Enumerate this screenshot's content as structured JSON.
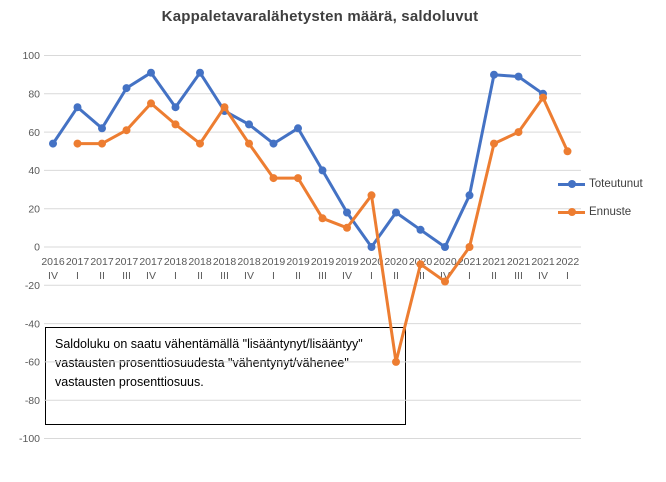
{
  "chart_data": {
    "type": "line",
    "title": "Kappaletavaralähetysten määrä, saldoluvut",
    "categories": [
      [
        "2016",
        "IV"
      ],
      [
        "2017",
        "I"
      ],
      [
        "2017",
        "II"
      ],
      [
        "2017",
        "III"
      ],
      [
        "2017",
        "IV"
      ],
      [
        "2018",
        "I"
      ],
      [
        "2018",
        "II"
      ],
      [
        "2018",
        "III"
      ],
      [
        "2018",
        "IV"
      ],
      [
        "2019",
        "I"
      ],
      [
        "2019",
        "II"
      ],
      [
        "2019",
        "III"
      ],
      [
        "2019",
        "IV"
      ],
      [
        "2020",
        "I"
      ],
      [
        "2020",
        "II"
      ],
      [
        "2020",
        "III"
      ],
      [
        "2020",
        "IV"
      ],
      [
        "2021",
        "I"
      ],
      [
        "2021",
        "II"
      ],
      [
        "2021",
        "III"
      ],
      [
        "2021",
        "IV"
      ],
      [
        "2022",
        "I"
      ]
    ],
    "series": [
      {
        "name": "Toteutunut",
        "color": "#4472C4",
        "values": [
          54,
          73,
          62,
          83,
          91,
          73,
          91,
          71,
          64,
          54,
          62,
          40,
          18,
          0,
          18,
          9,
          0,
          27,
          90,
          89,
          80,
          null
        ]
      },
      {
        "name": "Ennuste",
        "color": "#ED7D31",
        "values": [
          null,
          54,
          54,
          61,
          75,
          64,
          54,
          73,
          54,
          36,
          36,
          15,
          10,
          27,
          -60,
          -9,
          -18,
          0,
          54,
          60,
          78,
          50
        ]
      }
    ],
    "ylim": [
      -100,
      100
    ],
    "ytick_step": 20,
    "xlabel": "",
    "ylabel": "",
    "grid": "horizontal",
    "legend_position": "right",
    "axis_text_color": "#595959",
    "gridline_color": "#D9D9D9"
  },
  "annotation": {
    "text": "Saldoluku on saatu vähentämällä \"lisääntynyt/lisääntyy\" vastausten prosenttiosuudesta \"vähentynyt/vähenee\" vastausten prosenttiosuus."
  }
}
